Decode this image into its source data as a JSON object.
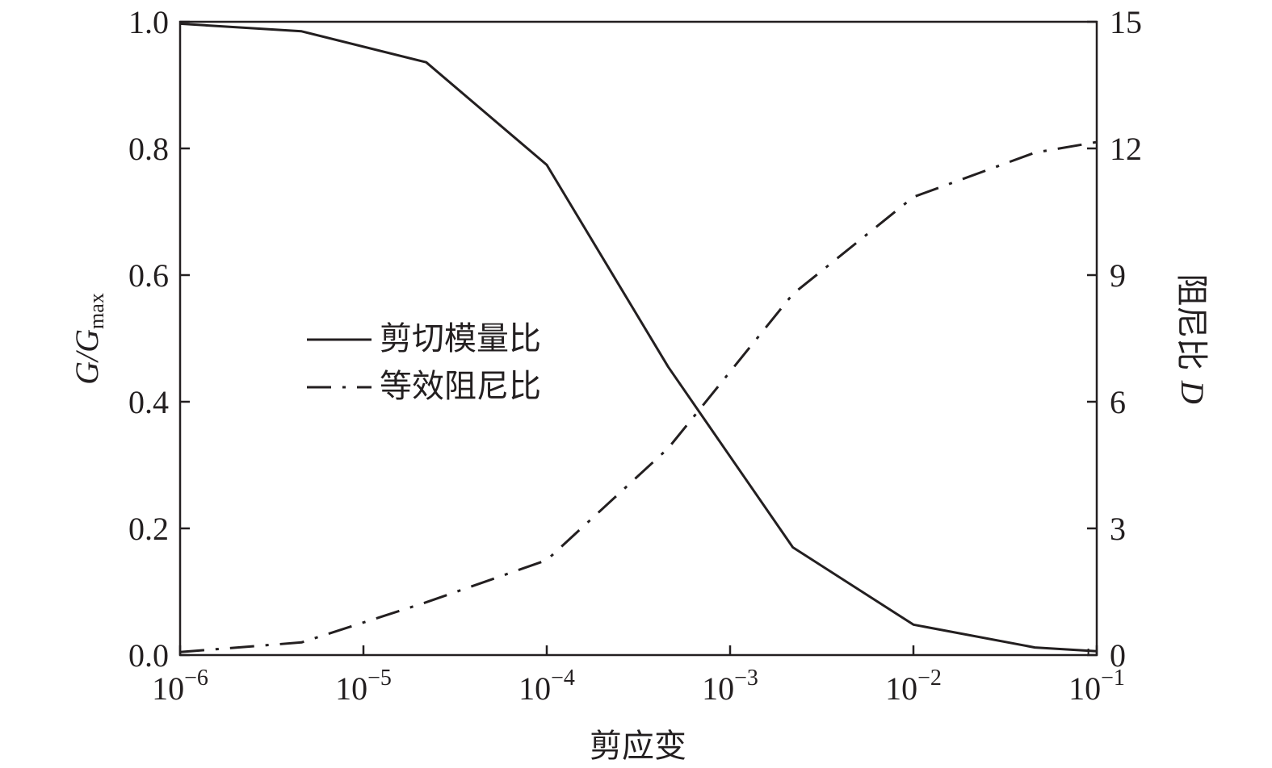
{
  "chart_data": {
    "type": "line",
    "x_scale": "log",
    "xlabel": "剪应变",
    "xlim": [
      1e-06,
      0.1
    ],
    "x_ticks": [
      {
        "base": "10",
        "exp": "−6"
      },
      {
        "base": "10",
        "exp": "−5"
      },
      {
        "base": "10",
        "exp": "−4"
      },
      {
        "base": "10",
        "exp": "−3"
      },
      {
        "base": "10",
        "exp": "−2"
      },
      {
        "base": "10",
        "exp": "−1"
      }
    ],
    "ylabel_left": {
      "main": "G/G",
      "sub": "max"
    },
    "ylim_left": [
      0,
      1.0
    ],
    "y_ticks_left": [
      "0.0",
      "0.2",
      "0.4",
      "0.6",
      "0.8",
      "1.0"
    ],
    "ylabel_right": {
      "main": "阻尼比 ",
      "italic": "D"
    },
    "ylim_right": [
      0,
      15
    ],
    "y_ticks_right": [
      "0",
      "3",
      "6",
      "9",
      "12",
      "15"
    ],
    "legend_position": "center-left",
    "series": [
      {
        "name": "剪切模量比",
        "axis": "left",
        "style": "solid",
        "x": [
          1e-06,
          4.6e-06,
          2.2e-05,
          0.0001,
          0.00046,
          0.0022,
          0.01,
          0.046,
          0.1
        ],
        "y": [
          0.997,
          0.985,
          0.936,
          0.774,
          0.455,
          0.17,
          0.048,
          0.012,
          0.006
        ]
      },
      {
        "name": "等效阻尼比",
        "axis": "right",
        "style": "dash-dot",
        "x": [
          1e-06,
          4.6e-06,
          2.2e-05,
          0.0001,
          0.00046,
          0.0022,
          0.01,
          0.046,
          0.1
        ],
        "y": [
          0.07,
          0.3,
          1.25,
          2.25,
          4.9,
          8.55,
          10.85,
          11.9,
          12.15
        ]
      }
    ]
  }
}
